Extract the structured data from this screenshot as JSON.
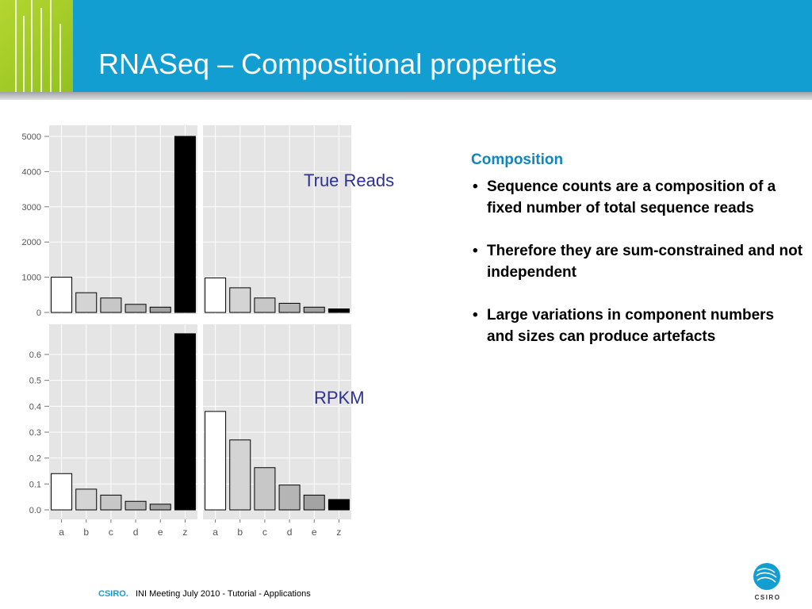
{
  "slide": {
    "title": "RNASeq – Compositional properties",
    "label_top": "True Reads",
    "label_bottom": "RPKM",
    "composition_heading": "Composition",
    "bullets": [
      "Sequence counts are a composition of a fixed number of total sequence reads",
      "Therefore they are sum-constrained and not independent",
      "Large variations in component numbers and sizes can produce artefacts"
    ],
    "footer_brand": "CSIRO.",
    "footer_text": "INI Meeting July 2010 - Tutorial - Applications",
    "logo_text": "CSIRO"
  },
  "chart_data": [
    {
      "type": "bar",
      "panel": "top-left",
      "categories": [
        "a",
        "b",
        "c",
        "d",
        "e",
        "z"
      ],
      "values": [
        1000,
        560,
        410,
        230,
        150,
        5000
      ],
      "fills": [
        "#ffffff",
        "#d4d4d4",
        "#c7c7c7",
        "#b5b5b5",
        "#a3a3a3",
        "#000000"
      ],
      "yticks": [
        "0",
        "1000",
        "2000",
        "3000",
        "4000",
        "5000"
      ],
      "ylim": [
        0,
        5300
      ]
    },
    {
      "type": "bar",
      "panel": "top-right",
      "categories": [
        "a",
        "b",
        "c",
        "d",
        "e",
        "z"
      ],
      "values": [
        980,
        700,
        410,
        260,
        150,
        100
      ],
      "fills": [
        "#ffffff",
        "#d4d4d4",
        "#c7c7c7",
        "#b5b5b5",
        "#a3a3a3",
        "#000000"
      ],
      "ylim": [
        0,
        5300
      ]
    },
    {
      "type": "bar",
      "panel": "bottom-left",
      "categories": [
        "a",
        "b",
        "c",
        "d",
        "e",
        "z"
      ],
      "values": [
        0.14,
        0.08,
        0.057,
        0.033,
        0.022,
        0.68
      ],
      "fills": [
        "#ffffff",
        "#d4d4d4",
        "#c7c7c7",
        "#b5b5b5",
        "#a3a3a3",
        "#000000"
      ],
      "yticks": [
        "0.0",
        "0.1",
        "0.2",
        "0.3",
        "0.4",
        "0.5",
        "0.6"
      ],
      "ylim": [
        0,
        0.7
      ]
    },
    {
      "type": "bar",
      "panel": "bottom-right",
      "categories": [
        "a",
        "b",
        "c",
        "d",
        "e",
        "z"
      ],
      "values": [
        0.38,
        0.27,
        0.163,
        0.096,
        0.057,
        0.04
      ],
      "fills": [
        "#ffffff",
        "#d4d4d4",
        "#c7c7c7",
        "#b5b5b5",
        "#a3a3a3",
        "#000000"
      ],
      "ylim": [
        0,
        0.7
      ]
    }
  ]
}
